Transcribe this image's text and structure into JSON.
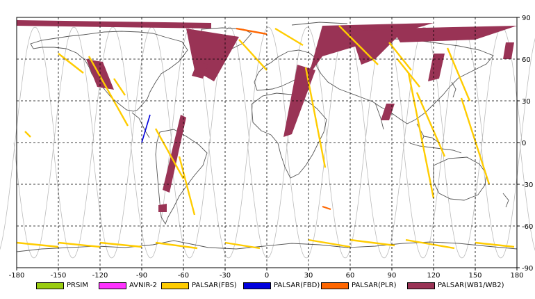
{
  "map": {
    "x_range": [
      -180,
      180
    ],
    "y_range": [
      -90,
      90
    ],
    "x_ticks": [
      -180,
      -150,
      -120,
      -90,
      -60,
      -30,
      0,
      30,
      60,
      90,
      120,
      150,
      180
    ],
    "y_ticks": [
      90,
      60,
      30,
      0,
      -30,
      -60,
      -90
    ],
    "x_tick_labels": [
      "-180",
      "-150",
      "-120",
      "-90",
      "-60",
      "-30",
      "0",
      "30",
      "60",
      "90",
      "120",
      "150",
      "180"
    ],
    "y_tick_labels": [
      "90",
      "60",
      "30",
      "0",
      "-30",
      "-60",
      "-90"
    ],
    "grid": "dashed"
  },
  "legend": [
    {
      "label": "PRSIM",
      "color": "#99cc11"
    },
    {
      "label": "AVNIR-2",
      "color": "#ff33ff"
    },
    {
      "label": "PALSAR(FBS)",
      "color": "#ffcc00"
    },
    {
      "label": "PALSAR(FBD)",
      "color": "#0000dd"
    },
    {
      "label": "PALSAR(PLR)",
      "color": "#ff6600"
    },
    {
      "label": "PALSAR(WB1/WB2)",
      "color": "#993355"
    }
  ],
  "colors": {
    "orbit_track": "#bbbbbb",
    "coastline": "#555555",
    "grid": "#000000"
  }
}
